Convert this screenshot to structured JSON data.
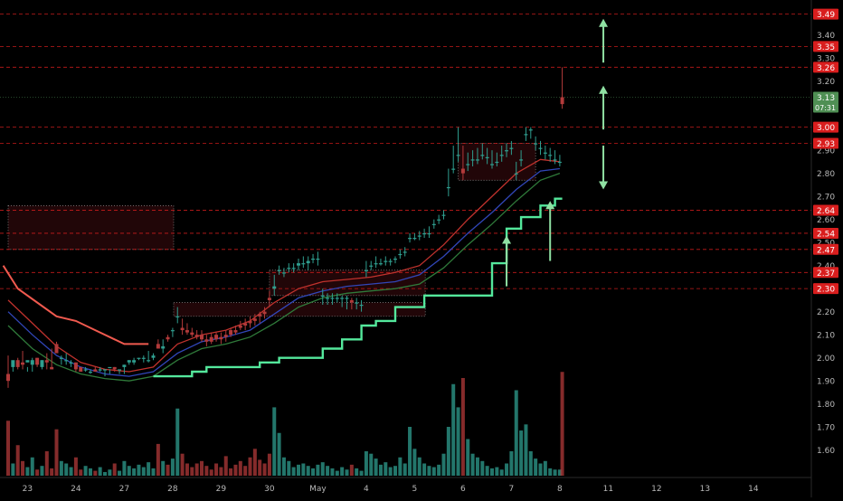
{
  "colors": {
    "background": "#000000",
    "up": "#2f9e8f",
    "down": "#b23a3a",
    "level": "#d91e1e",
    "axis_text": "#b8b8b8",
    "upper_band": "#f05a4f",
    "lower_band": "#54e89c",
    "arrow": "#8fe0a2",
    "current_price_bg": "#4f8f54",
    "ma_red": "#c0322d",
    "ma_blue": "#3146b8",
    "ma_green": "#2f7a3a"
  },
  "chart_data": {
    "type": "candlestick",
    "ylim": [
      1.54,
      3.52
    ],
    "y_ticks": [
      "3.40",
      "3.30",
      "3.20",
      "2.90",
      "2.80",
      "2.70",
      "2.60",
      "2.50",
      "2.40",
      "2.20",
      "2.10",
      "2.00",
      "1.90",
      "1.80",
      "1.70",
      "1.60"
    ],
    "x_labels": [
      "23",
      "24",
      "27",
      "28",
      "29",
      "30",
      "May",
      "4",
      "5",
      "6",
      "7",
      "8",
      "11",
      "12",
      "13",
      "14"
    ],
    "x_label_pos": [
      0.4,
      1.4,
      2.4,
      3.4,
      4.4,
      5.4,
      6.4,
      7.4,
      8.4,
      9.4,
      10.4,
      11.4,
      12.4,
      13.4,
      14.4,
      15.4
    ],
    "resistance_levels": [
      {
        "label": "3.49",
        "value": 3.49
      },
      {
        "label": "3.35",
        "value": 3.35
      },
      {
        "label": "3.26",
        "value": 3.26
      },
      {
        "label": "3.00",
        "value": 3.0
      },
      {
        "label": "2.93",
        "value": 2.93
      },
      {
        "label": "2.64",
        "value": 2.64
      },
      {
        "label": "2.54",
        "value": 2.54
      },
      {
        "label": "2.47",
        "value": 2.47
      },
      {
        "label": "2.37",
        "value": 2.37
      },
      {
        "label": "2.30",
        "value": 2.3
      }
    ],
    "current_price": {
      "label": "3.13",
      "value": 3.13,
      "countdown": "07:31"
    },
    "zones": [
      {
        "x0": 0.0,
        "x1": 3.42,
        "y_top": 2.66,
        "y_bottom": 2.47
      },
      {
        "x0": 3.42,
        "x1": 8.62,
        "y_top": 2.24,
        "y_bottom": 2.18
      },
      {
        "x0": 5.4,
        "x1": 8.62,
        "y_top": 2.38,
        "y_bottom": 2.27
      },
      {
        "x0": 9.3,
        "x1": 10.9,
        "y_top": 2.93,
        "y_bottom": 2.77
      }
    ],
    "upper_band": [
      [
        -0.1,
        2.4
      ],
      [
        0.2,
        2.3
      ],
      [
        0.6,
        2.24
      ],
      [
        1.0,
        2.18
      ],
      [
        1.4,
        2.16
      ],
      [
        1.8,
        2.12
      ],
      [
        2.2,
        2.08
      ],
      [
        2.4,
        2.06
      ],
      [
        2.9,
        2.06
      ]
    ],
    "lower_band": [
      [
        3.0,
        1.92
      ],
      [
        3.4,
        1.92
      ],
      [
        3.8,
        1.94
      ],
      [
        4.1,
        1.96
      ],
      [
        4.4,
        1.96
      ],
      [
        4.9,
        1.96
      ],
      [
        5.2,
        1.98
      ],
      [
        5.6,
        2.0
      ],
      [
        6.1,
        2.0
      ],
      [
        6.5,
        2.04
      ],
      [
        6.9,
        2.08
      ],
      [
        7.3,
        2.14
      ],
      [
        7.6,
        2.16
      ],
      [
        8.0,
        2.22
      ],
      [
        8.6,
        2.27
      ],
      [
        9.4,
        2.27
      ],
      [
        10.0,
        2.41
      ],
      [
        10.3,
        2.56
      ],
      [
        10.6,
        2.61
      ],
      [
        11.0,
        2.66
      ],
      [
        11.3,
        2.69
      ],
      [
        11.45,
        2.69
      ]
    ],
    "ma_red": [
      [
        0,
        2.25
      ],
      [
        0.5,
        2.15
      ],
      [
        1.0,
        2.05
      ],
      [
        1.5,
        1.98
      ],
      [
        2.0,
        1.95
      ],
      [
        2.5,
        1.94
      ],
      [
        3.0,
        1.96
      ],
      [
        3.5,
        2.06
      ],
      [
        4.0,
        2.1
      ],
      [
        4.5,
        2.12
      ],
      [
        5.0,
        2.16
      ],
      [
        5.5,
        2.24
      ],
      [
        6.0,
        2.3
      ],
      [
        6.5,
        2.33
      ],
      [
        7.0,
        2.34
      ],
      [
        7.5,
        2.35
      ],
      [
        8.0,
        2.37
      ],
      [
        8.5,
        2.4
      ],
      [
        9.0,
        2.49
      ],
      [
        9.5,
        2.6
      ],
      [
        10.0,
        2.7
      ],
      [
        10.5,
        2.8
      ],
      [
        11.0,
        2.86
      ],
      [
        11.4,
        2.85
      ]
    ],
    "ma_blue": [
      [
        0,
        2.2
      ],
      [
        0.5,
        2.1
      ],
      [
        1.0,
        2.01
      ],
      [
        1.5,
        1.96
      ],
      [
        2.0,
        1.93
      ],
      [
        2.5,
        1.92
      ],
      [
        3.0,
        1.94
      ],
      [
        3.5,
        2.02
      ],
      [
        4.0,
        2.07
      ],
      [
        4.5,
        2.09
      ],
      [
        5.0,
        2.12
      ],
      [
        5.5,
        2.19
      ],
      [
        6.0,
        2.26
      ],
      [
        6.5,
        2.29
      ],
      [
        7.0,
        2.31
      ],
      [
        7.5,
        2.32
      ],
      [
        8.0,
        2.33
      ],
      [
        8.5,
        2.36
      ],
      [
        9.0,
        2.44
      ],
      [
        9.5,
        2.54
      ],
      [
        10.0,
        2.63
      ],
      [
        10.5,
        2.73
      ],
      [
        11.0,
        2.81
      ],
      [
        11.4,
        2.82
      ]
    ],
    "ma_green": [
      [
        0,
        2.14
      ],
      [
        0.5,
        2.04
      ],
      [
        1.0,
        1.97
      ],
      [
        1.5,
        1.93
      ],
      [
        2.0,
        1.91
      ],
      [
        2.5,
        1.9
      ],
      [
        3.0,
        1.92
      ],
      [
        3.5,
        1.99
      ],
      [
        4.0,
        2.04
      ],
      [
        4.5,
        2.06
      ],
      [
        5.0,
        2.09
      ],
      [
        5.5,
        2.15
      ],
      [
        6.0,
        2.22
      ],
      [
        6.5,
        2.26
      ],
      [
        7.0,
        2.28
      ],
      [
        7.5,
        2.29
      ],
      [
        8.0,
        2.3
      ],
      [
        8.5,
        2.32
      ],
      [
        9.0,
        2.39
      ],
      [
        9.5,
        2.49
      ],
      [
        10.0,
        2.58
      ],
      [
        10.5,
        2.68
      ],
      [
        11.0,
        2.77
      ],
      [
        11.4,
        2.8
      ]
    ],
    "candles_compact": "0.0,1.93,2.01,1.90,1.87;0.1,1.96,1.98,1.99,1.94;0.2,1.99,2.00,1.96,1.95;0.3,1.98,2.03,1.97,1.95;0.4,1.98,1.96,1.99,1.94;0.5,1.97,2.00,1.99,1.94;0.6,2.00,2.00,1.97,1.96;0.7,1.96,1.99,1.99,1.95;0.8,1.99,2.02,1.98,1.95;0.9,1.96,2.04,1.95,1.95;1.0,2.06,2.07,2.02,2.06;1.1,2.00,2.01,2.00,1.97;1.2,1.99,2.02,1.99,1.97;1.3,1.98,1.99,1.98,1.96;1.4,1.98,1.98,1.95,1.94;1.5,1.96,1.96,1.94,1.94;1.6,1.95,1.96,1.95,1.94;1.7,1.94,1.95,1.94,1.93;1.8,1.95,1.96,1.94,1.94;1.9,1.95,1.96,1.95,1.94;2.0,1.95,1.95,1.95,1.92;2.1,1.96,1.95,1.96,1.93;2.2,1.96,1.96,1.95,1.94;2.3,1.95,1.95,1.95,1.93;2.4,1.96,1.97,1.97,1.93;2.5,1.98,1.99,1.99,1.97;2.6,1.98,2.00,1.99,1.97;2.7,2.00,2.00,2.00,1.99;2.8,2.00,2.01,2.00,1.98;2.9,1.99,2.03,1.99,1.98;3.0,2.00,2.02,2.01,1.99;3.1,2.06,2.08,2.04,2.04;3.2,2.04,2.08,2.05,2.02;3.3,2.09,2.10,2.08,2.07;3.4,2.12,2.13,2.12,2.09;3.5,2.18,2.22,2.18,2.15;3.6,2.13,2.17,2.12,2.10;3.7,2.12,2.15,2.11,2.10;3.8,2.11,2.13,2.10,2.09;3.9,2.10,2.12,2.09,2.08;4.0,2.10,2.12,2.08,2.07;4.1,2.08,2.10,2.07,2.05;4.2,2.09,2.11,2.07,2.06;4.3,2.10,2.11,2.08,2.07;4.4,2.09,2.11,2.08,2.06;4.5,2.10,2.12,2.09,2.07;4.6,2.12,2.13,2.10,2.09;4.7,2.12,2.14,2.11,2.10;4.8,2.14,2.16,2.13,2.12;4.9,2.15,2.17,2.14,2.12;5.0,2.16,2.18,2.15,2.13;5.1,2.17,2.19,2.16,2.14;5.2,2.19,2.20,2.18,2.15;5.3,2.20,2.22,2.19,2.17;5.4,2.26,2.29,2.25,2.22;5.5,2.30,2.36,2.31,2.27;5.6,2.38,2.40,2.38,2.36;5.7,2.37,2.39,2.37,2.35;5.8,2.39,2.41,2.39,2.37;5.9,2.39,2.41,2.39,2.37;6.0,2.40,2.43,2.41,2.38;6.1,2.41,2.44,2.41,2.39;6.2,2.41,2.44,2.42,2.38;6.3,2.43,2.45,2.43,2.41;6.4,2.43,2.46,2.43,2.40;6.5,2.27,2.30,2.27,2.23;6.6,2.26,2.28,2.26,2.23;6.7,2.26,2.28,2.26,2.23;6.8,2.26,2.28,2.26,2.24;6.9,2.26,2.27,2.26,2.22;7.0,2.26,2.27,2.26,2.21;7.1,2.25,2.26,2.24,2.21;7.2,2.24,2.26,2.24,2.21;7.3,2.23,2.25,2.23,2.20;7.4,2.38,2.42,2.38,2.35;7.5,2.40,2.42,2.40,2.38;7.6,2.41,2.44,2.41,2.39;7.7,2.41,2.43,2.41,2.40;7.8,2.42,2.44,2.42,2.40;7.9,2.42,2.43,2.42,2.40;8.0,2.43,2.44,2.43,2.41;8.1,2.45,2.47,2.45,2.43;8.2,2.46,2.48,2.46,2.44;8.3,2.52,2.54,2.52,2.50;8.4,2.52,2.54,2.52,2.51;8.5,2.53,2.55,2.53,2.51;8.6,2.54,2.56,2.54,2.52;8.7,2.54,2.57,2.54,2.52;8.8,2.58,2.60,2.58,2.56;8.9,2.60,2.62,2.60,2.58;9.0,2.62,2.64,2.62,2.60;9.1,2.74,2.82,2.74,2.70;9.2,2.82,2.92,2.82,2.80;9.3,2.88,3.00,2.88,2.85;9.4,2.82,2.92,2.80,2.77;9.5,2.84,2.89,2.84,2.81;9.6,2.86,2.90,2.86,2.83;9.7,2.86,2.91,2.86,2.84;9.8,2.88,2.93,2.88,2.86;9.9,2.87,2.91,2.87,2.84;10.0,2.84,2.90,2.84,2.82;10.1,2.85,2.89,2.85,2.83;10.2,2.88,2.92,2.88,2.85;10.3,2.90,2.93,2.90,2.87;10.4,2.91,2.94,2.91,2.88;10.5,2.80,2.85,2.80,2.77;10.6,2.86,2.90,2.86,2.83;10.7,2.97,3.00,2.97,2.94;10.8,2.99,3.00,2.99,2.95;10.9,2.93,2.96,2.93,2.90;11.0,2.91,2.94,2.91,2.88;11.1,2.89,2.92,2.89,2.86;11.2,2.88,2.91,2.88,2.85;11.3,2.86,2.90,2.86,2.84;11.4,2.85,2.88,2.85,2.83;11.45,3.13,3.26,3.10,3.08",
    "volumes_compact": "0.0,0.45;0.1,0.10;0.2,0.25;0.3,0.12;0.4,0.07;0.5,0.15;0.6,0.05;0.7,0.08;0.8,0.20;0.9,0.06;1.0,0.38;1.1,0.12;1.2,0.10;1.3,0.07;1.4,0.15;1.5,0.05;1.6,0.08;1.7,0.06;1.8,0.04;1.9,0.07;2.0,0.03;2.1,0.05;2.2,0.10;2.3,0.04;2.4,0.12;2.5,0.08;2.6,0.06;2.7,0.09;2.8,0.07;2.9,0.11;3.0,0.06;3.1,0.26;3.2,0.12;3.3,0.09;3.4,0.14;3.5,0.55;3.6,0.18;3.7,0.10;3.8,0.07;3.9,0.10;4.0,0.12;4.1,0.08;4.2,0.05;4.3,0.10;4.4,0.07;4.5,0.16;4.6,0.06;4.7,0.09;4.8,0.12;4.9,0.08;5.0,0.15;5.1,0.22;5.2,0.13;5.3,0.10;5.4,0.18;5.5,0.56;5.6,0.35;5.7,0.15;5.8,0.12;5.9,0.07;6.0,0.09;6.1,0.10;6.2,0.08;6.3,0.06;6.4,0.09;6.5,0.11;6.6,0.08;6.7,0.06;6.8,0.04;6.9,0.07;7.0,0.05;7.1,0.09;7.2,0.06;7.3,0.04;7.4,0.20;7.5,0.18;7.6,0.14;7.7,0.09;7.8,0.11;7.9,0.07;8.0,0.08;8.1,0.15;8.2,0.10;8.3,0.40;8.4,0.22;8.5,0.15;8.6,0.10;8.7,0.08;8.8,0.07;8.9,0.09;9.0,0.18;9.1,0.40;9.2,0.75;9.3,0.56;9.4,0.80;9.5,0.30;9.6,0.18;9.7,0.15;9.8,0.12;9.9,0.08;10.0,0.06;10.1,0.07;10.2,0.05;10.3,0.10;10.4,0.20;10.5,0.70;10.6,0.37;10.7,0.42;10.8,0.20;10.9,0.14;11.0,0.10;11.1,0.12;11.2,0.06;11.3,0.05;11.4,0.05;11.45,0.85",
    "arrows": [
      {
        "x": 12.3,
        "y_from": 3.28,
        "y_to": 3.47
      },
      {
        "x": 12.3,
        "y_from": 2.99,
        "y_to": 3.18
      },
      {
        "x": 12.3,
        "y_from": 2.92,
        "y_to": 2.73
      },
      {
        "x": 10.3,
        "y_from": 2.31,
        "y_to": 2.53
      },
      {
        "x": 11.2,
        "y_from": 2.42,
        "y_to": 2.68
      }
    ]
  }
}
